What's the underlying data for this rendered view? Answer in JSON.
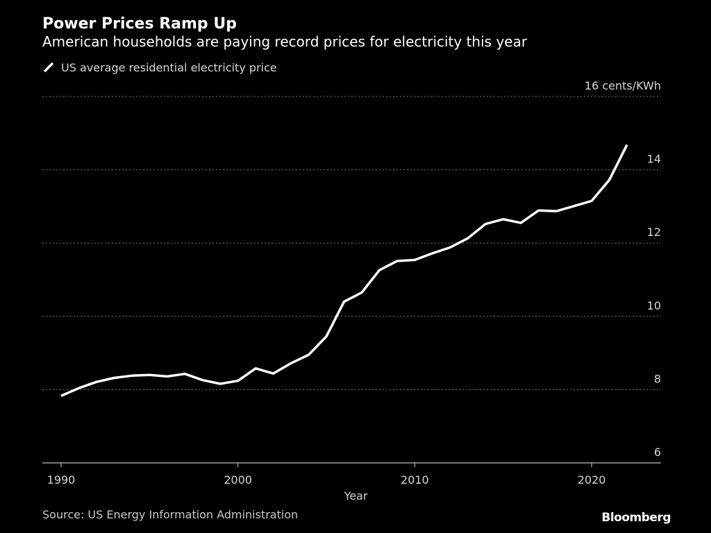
{
  "header": {
    "title": "Power Prices Ramp Up",
    "subtitle": "American households are paying record prices for electricity this year"
  },
  "legend": {
    "label": "US average residential electricity price"
  },
  "footer": {
    "source": "Source: US Energy Information Administration",
    "brand": "Bloomberg"
  },
  "colors": {
    "background": "#000000",
    "line": "#ffffff",
    "grid": "#7a7a7a",
    "text": "#d6d6d6"
  },
  "chart_data": {
    "type": "line",
    "title": "Power Prices Ramp Up",
    "subtitle": "American households are paying record prices for electricity this year",
    "xlabel": "Year",
    "ylabel": "",
    "y_unit_label": "16 cents/KWh",
    "xlim": [
      1989,
      2023.8
    ],
    "ylim": [
      6,
      16
    ],
    "x_ticks": [
      1990,
      2000,
      2010,
      2020
    ],
    "y_ticks": [
      6,
      8,
      10,
      12,
      14,
      16
    ],
    "y_tick_labels": [
      "6",
      "8",
      "10",
      "12",
      "14",
      "16 cents/KWh"
    ],
    "grid": "horizontal dotted",
    "legend_position": "top-left",
    "series": [
      {
        "name": "US average residential electricity price",
        "x": [
          1990,
          1991,
          1992,
          1993,
          1994,
          1995,
          1996,
          1997,
          1998,
          1999,
          2000,
          2001,
          2002,
          2003,
          2004,
          2005,
          2006,
          2007,
          2008,
          2009,
          2010,
          2011,
          2012,
          2013,
          2014,
          2015,
          2016,
          2017,
          2018,
          2019,
          2020,
          2021,
          2022
        ],
        "values": [
          7.83,
          8.04,
          8.21,
          8.32,
          8.38,
          8.4,
          8.36,
          8.43,
          8.26,
          8.16,
          8.24,
          8.58,
          8.44,
          8.72,
          8.95,
          9.45,
          10.4,
          10.65,
          11.26,
          11.51,
          11.54,
          11.72,
          11.88,
          12.13,
          12.52,
          12.65,
          12.55,
          12.89,
          12.87,
          13.01,
          13.15,
          13.72,
          14.68
        ]
      }
    ]
  }
}
